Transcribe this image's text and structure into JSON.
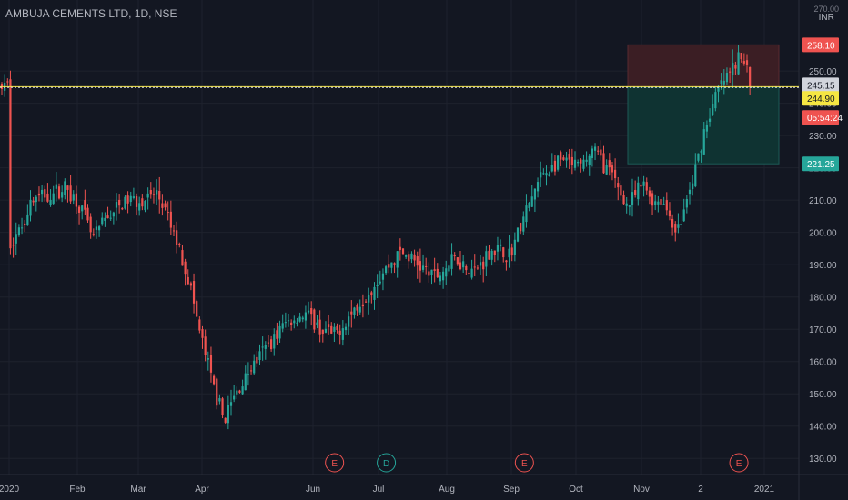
{
  "chart_title": "AMBUJA CEMENTS LTD, 1D, NSE",
  "currency": "INR",
  "top_tick": "270.00",
  "colors": {
    "background": "#131722",
    "grid": "#1e222d",
    "up": "#26a69a",
    "down": "#ef5350",
    "text": "#b2b5be",
    "price_line": "#f5e642",
    "stop_zone": "#3b1e24",
    "target_zone": "#0f3332"
  },
  "chart_data": {
    "type": "candlestick",
    "ylim": [
      125,
      272
    ],
    "y_ticks": [
      "130.00",
      "140.00",
      "150.00",
      "160.00",
      "170.00",
      "180.00",
      "190.00",
      "200.00",
      "210.00",
      "220.00",
      "230.00",
      "240.00",
      "250.00"
    ],
    "x_ticks": [
      "2020",
      "Feb",
      "Mar",
      "Apr",
      "Jun",
      "Jul",
      "Aug",
      "Sep",
      "Oct",
      "Nov",
      "2",
      "2021"
    ],
    "waypoints": [
      [
        "2020-01-01",
        197
      ],
      [
        "2020-01-05",
        200
      ],
      [
        "2020-01-10",
        210
      ],
      [
        "2020-01-18",
        212
      ],
      [
        "2020-01-24",
        214
      ],
      [
        "2020-01-30",
        208
      ],
      [
        "2020-02-04",
        198
      ],
      [
        "2020-02-10",
        205
      ],
      [
        "2020-02-18",
        210
      ],
      [
        "2020-02-25",
        210
      ],
      [
        "2020-03-01",
        212
      ],
      [
        "2020-03-05",
        205
      ],
      [
        "2020-03-10",
        195
      ],
      [
        "2020-03-14",
        185
      ],
      [
        "2020-03-18",
        170
      ],
      [
        "2020-03-24",
        152
      ],
      [
        "2020-03-28",
        142
      ],
      [
        "2020-04-02",
        150
      ],
      [
        "2020-04-08",
        158
      ],
      [
        "2020-04-15",
        165
      ],
      [
        "2020-04-22",
        172
      ],
      [
        "2020-04-30",
        175
      ],
      [
        "2020-05-06",
        170
      ],
      [
        "2020-05-12",
        168
      ],
      [
        "2020-05-20",
        176
      ],
      [
        "2020-05-26",
        182
      ],
      [
        "2020-06-01",
        188
      ],
      [
        "2020-06-08",
        194
      ],
      [
        "2020-06-15",
        190
      ],
      [
        "2020-06-22",
        186
      ],
      [
        "2020-06-30",
        192
      ],
      [
        "2020-07-08",
        188
      ],
      [
        "2020-07-15",
        195
      ],
      [
        "2020-07-22",
        193
      ],
      [
        "2020-07-28",
        205
      ],
      [
        "2020-08-04",
        218
      ],
      [
        "2020-08-12",
        222
      ],
      [
        "2020-08-20",
        220
      ],
      [
        "2020-08-25",
        226
      ],
      [
        "2020-09-01",
        218
      ],
      [
        "2020-09-08",
        208
      ],
      [
        "2020-09-14",
        215
      ],
      [
        "2020-09-18",
        210
      ],
      [
        "2020-09-22",
        210
      ],
      [
        "2020-09-28",
        200
      ],
      [
        "2020-10-04",
        215
      ],
      [
        "2020-10-09",
        232
      ],
      [
        "2020-10-15",
        245
      ],
      [
        "2020-10-20",
        250
      ],
      [
        "2020-10-23",
        254
      ],
      [
        "2020-10-26",
        252
      ],
      [
        "2020-10-28",
        245.15
      ]
    ],
    "last_close": 245.15,
    "position": {
      "entry": 244.9,
      "stop": 258.1,
      "target": 221.25
    },
    "price_labels": {
      "stop": "258.10",
      "last": "245.15",
      "entry": "244.90",
      "countdown": "05:54:24",
      "target": "221.25"
    },
    "events": [
      {
        "label": "E",
        "date": "2020-05-12",
        "type": "earnings"
      },
      {
        "label": "D",
        "date": "2020-06-02",
        "type": "dividend"
      },
      {
        "label": "E",
        "date": "2020-07-28",
        "type": "earnings"
      },
      {
        "label": "E",
        "date": "2020-10-23",
        "type": "earnings"
      }
    ]
  }
}
